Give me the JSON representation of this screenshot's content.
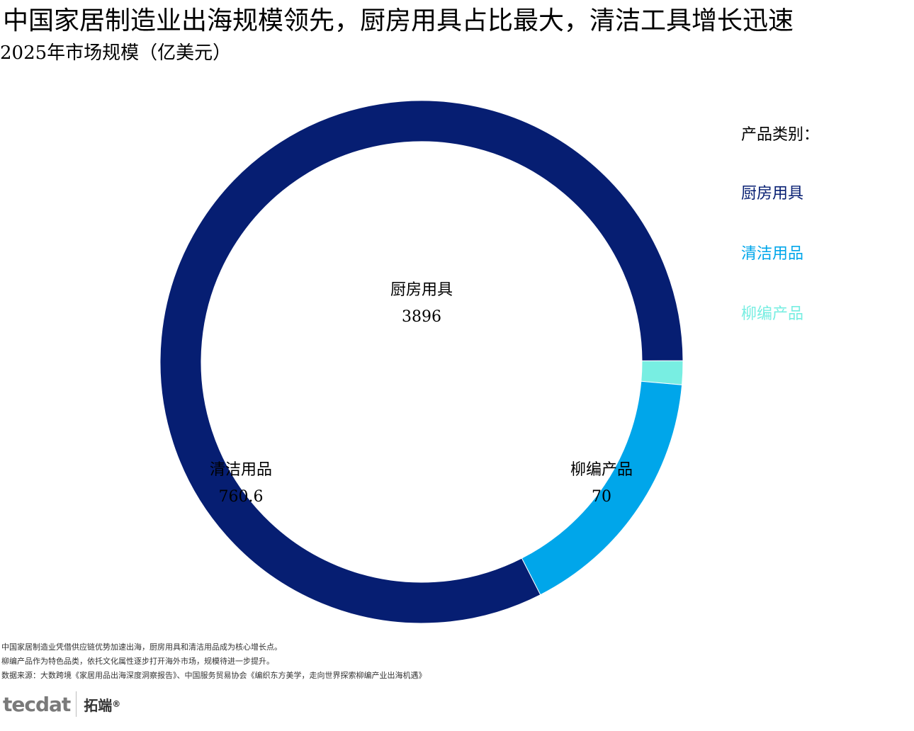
{
  "header": {
    "title": "中国家居制造业出海规模领先，厨房用具占比最大，清洁工具增长迅速",
    "subtitle": "2025年市场规模（亿美元）"
  },
  "legend": {
    "title": "产品类别：",
    "items": [
      {
        "label": "厨房用具",
        "color": "#061E72"
      },
      {
        "label": "清洁用品",
        "color": "#00A6EA"
      },
      {
        "label": "柳编产品",
        "color": "#78EEE2"
      }
    ]
  },
  "chart_data": {
    "type": "pie",
    "subtype": "donut",
    "title": "2025年市场规模（亿美元）",
    "slices": [
      {
        "label": "厨房用具",
        "value": 3896,
        "value_text": "3896",
        "color": "#061E72"
      },
      {
        "label": "清洁用品",
        "value": 760.6,
        "value_text": "760.6",
        "color": "#00A6EA"
      },
      {
        "label": "柳编产品",
        "value": 70,
        "value_text": "70",
        "color": "#78EEE2"
      }
    ],
    "legend_position": "right"
  },
  "footnotes": [
    "中国家居制造业凭借供应链优势加速出海，厨房用具和清洁用品成为核心增长点。",
    "柳编产品作为特色品类，依托文化属性逐步打开海外市场，规模待进一步提升。",
    "数据来源：大数跨境《家居用品出海深度洞察报告》、中国服务贸易协会《编织东方美学，走向世界探索柳编产业出海机遇》"
  ],
  "logo": {
    "mark": "tecdat",
    "cn": "拓端",
    "reg": "®"
  }
}
